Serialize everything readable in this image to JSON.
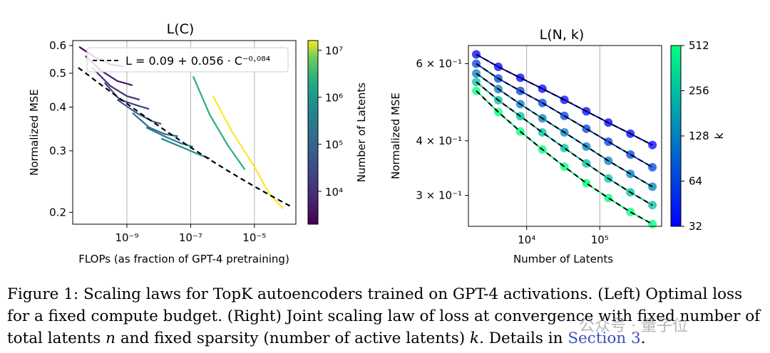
{
  "chart_data": [
    {
      "type": "line",
      "title": "L(C)",
      "xlabel": "FLOPs (as fraction of GPT-4 pretraining)",
      "ylabel": "Normalized MSE",
      "x_scale": "log",
      "y_scale": "log",
      "xlim": [
        2e-11,
        0.0002
      ],
      "ylim": [
        0.185,
        0.62
      ],
      "x_ticks": [
        1e-09,
        1e-07,
        1e-05
      ],
      "x_tick_labels": [
        "10⁻⁹",
        "10⁻⁷",
        "10⁻⁵"
      ],
      "y_ticks": [
        0.2,
        0.3,
        0.4,
        0.5,
        0.6
      ],
      "y_tick_labels": [
        "0.2",
        "0.3",
        "0.4",
        "0.5",
        "0.6"
      ],
      "grid": "vertical",
      "legend": {
        "location": "top",
        "entry": "L = 0.09 + 0.056 · C⁻⁰·⁰⁸⁴"
      },
      "fit": {
        "a": 0.09,
        "b": 0.056,
        "exponent": -0.084,
        "x_range": [
          3e-11,
          0.00015
        ]
      },
      "colorbar": {
        "label": "Number of Latents",
        "scale": "log",
        "range": [
          2000,
          16000000
        ],
        "ticks": [
          10000,
          100000,
          1000000,
          10000000
        ],
        "tick_labels": [
          "10⁴",
          "10⁵",
          "10⁶",
          "10⁷"
        ],
        "colormap": "viridis"
      },
      "series": [
        {
          "latents": 2048,
          "x": [
            3.2e-11,
            1e-10,
            3e-10,
            8e-10
          ],
          "y": [
            0.595,
            0.555,
            0.53,
            0.523
          ]
        },
        {
          "latents": 4096,
          "x": [
            5e-11,
            1.5e-10,
            5e-10,
            1.5e-09
          ],
          "y": [
            0.56,
            0.51,
            0.475,
            0.462
          ]
        },
        {
          "latents": 8192,
          "x": [
            8e-11,
            3e-10,
            1e-09,
            2.5e-09
          ],
          "y": [
            0.52,
            0.46,
            0.43,
            0.42
          ]
        },
        {
          "latents": 16384,
          "x": [
            2e-10,
            6e-10,
            2e-09,
            5e-09
          ],
          "y": [
            0.47,
            0.42,
            0.405,
            0.395
          ]
        },
        {
          "latents": 32768,
          "x": [
            5e-10,
            2e-09,
            6e-09,
            1.2e-08
          ],
          "y": [
            0.42,
            0.385,
            0.365,
            0.358
          ]
        },
        {
          "latents": 65536,
          "x": [
            1.5e-09,
            5e-09,
            1.5e-08,
            4e-08
          ],
          "y": [
            0.385,
            0.35,
            0.335,
            0.33
          ]
        },
        {
          "latents": 131072,
          "x": [
            4e-09,
            1.5e-08,
            5e-08,
            1.2e-07
          ],
          "y": [
            0.35,
            0.33,
            0.315,
            0.308
          ]
        },
        {
          "latents": 262144,
          "x": [
            1.2e-08,
            5e-08,
            1.5e-07,
            4e-07
          ],
          "y": [
            0.325,
            0.308,
            0.295,
            0.285
          ]
        },
        {
          "latents": 1048576,
          "x": [
            1.2e-07,
            4e-07,
            1.5e-06,
            5e-06
          ],
          "y": [
            0.49,
            0.38,
            0.31,
            0.265
          ]
        },
        {
          "latents": 16777216,
          "x": [
            5e-07,
            2e-06,
            1e-05,
            3e-05,
            8e-05
          ],
          "y": [
            0.43,
            0.34,
            0.27,
            0.225,
            0.205
          ]
        }
      ]
    },
    {
      "type": "line",
      "title": "L(N, k)",
      "xlabel": "Number of Latents",
      "ylabel": "Normalized MSE",
      "x_scale": "log",
      "y_scale": "log",
      "xlim": [
        1600,
        700000
      ],
      "ylim": [
        0.255,
        0.66
      ],
      "x_ticks": [
        10000,
        100000
      ],
      "x_tick_labels": [
        "10⁴",
        "10⁵"
      ],
      "y_ticks": [
        0.3,
        0.4,
        0.6
      ],
      "y_tick_labels": [
        "3 × 10⁻¹",
        "4 × 10⁻¹",
        "6 × 10⁻¹"
      ],
      "grid": "vertical",
      "colorbar": {
        "label": "k",
        "scale": "log",
        "range": [
          32,
          512
        ],
        "ticks": [
          32,
          64,
          128,
          256,
          512
        ],
        "tick_labels": [
          "32",
          "64",
          "128",
          "256",
          "512"
        ],
        "colormap": "winter"
      },
      "x": [
        2048,
        4096,
        8192,
        16384,
        32768,
        65536,
        131072,
        262144,
        524288
      ],
      "series": [
        {
          "k": 32,
          "y": [
            0.63,
            0.59,
            0.557,
            0.526,
            0.496,
            0.467,
            0.44,
            0.415,
            0.391
          ]
        },
        {
          "k": 64,
          "y": [
            0.6,
            0.555,
            0.52,
            0.488,
            0.456,
            0.426,
            0.398,
            0.372,
            0.348
          ]
        },
        {
          "k": 128,
          "y": [
            0.57,
            0.525,
            0.485,
            0.45,
            0.418,
            0.388,
            0.36,
            0.336,
            0.314
          ]
        },
        {
          "k": 256,
          "y": [
            0.545,
            0.495,
            0.455,
            0.418,
            0.385,
            0.355,
            0.328,
            0.305,
            0.285
          ]
        },
        {
          "k": 512,
          "y": [
            0.52,
            0.465,
            0.42,
            0.382,
            0.349,
            0.32,
            0.296,
            0.275,
            0.258
          ]
        }
      ]
    }
  ],
  "caption": {
    "text": "Figure 1: Scaling laws for TopK autoencoders trained on GPT-4 activations. (Left) Optimal loss for a fixed compute budget. (Right) Joint scaling law of loss at convergence with fixed number of total latents ",
    "var_n": "n",
    "text_mid": " and fixed sparsity (number of active latents) ",
    "var_k": "k",
    "text_details": ". Details in ",
    "link": "Section 3",
    "text_end": "."
  },
  "watermark": "公众号 · 量子位"
}
